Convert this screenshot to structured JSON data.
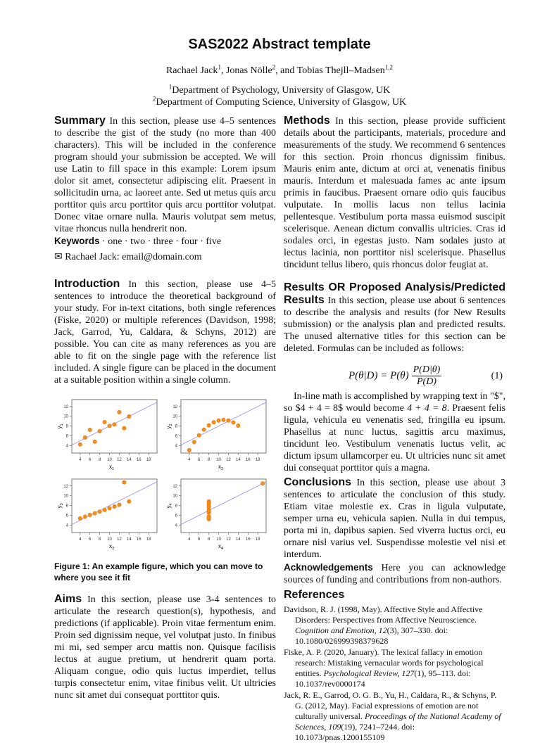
{
  "title": "SAS2022 Abstract template",
  "authors": [
    {
      "name": "Rachael Jack",
      "sup": "1",
      "sep": ", "
    },
    {
      "name": "Jonas Nölle",
      "sup": "2",
      "sep": ", and "
    },
    {
      "name": "Tobias Thejll–Madsen",
      "sup": "1,2",
      "sep": ""
    }
  ],
  "affiliations": [
    {
      "sup": "1",
      "text": "Department of Psychology, University of Glasgow, UK"
    },
    {
      "sup": "2",
      "text": "Department of Computing Science, University of Glasgow, UK"
    }
  ],
  "summary": {
    "heading": "Summary",
    "text": "In this section, please use 4–5 sentences to describe the gist of the study (no more than 400 characters). This will be included in the conference program should your submission be accepted. We will use Latin to fill space in this example: Lorem ipsum dolor sit amet, consectetur adipiscing elit. Praesent in sollicitudin urna, ac laoreet ante. Sed ut metus quis arcu porttitor quis arcu porttitor quis arcu porttitor volutpat. Donec vitae ornare nulla. Mauris volutpat sem metus, vitae rhoncus nulla hendrerit non."
  },
  "keywords": {
    "label": "Keywords",
    "text": "· one · two · three · four · five"
  },
  "contact": {
    "icon": "envelope-icon",
    "glyph": "✉",
    "text": "Rachael Jack: email@domain.com"
  },
  "introduction": {
    "heading": "Introduction",
    "text": "In this section, please use 4–5 sentences to introduce the theoretical background of your study. For in-text citations, both single references (Fiske, 2020) or multiple references (Davidson, 1998; Jack, Garrod, Yu, Caldara, & Schyns, 2012) are possible. You can cite as many references as you are able to fit on the single page with the reference list included. A single figure can be placed in the document at a suitable position within a single column."
  },
  "figure": {
    "caption": "Figure 1: An example figure, which you can move to where you see it fit"
  },
  "chart_data": [
    {
      "type": "scatter",
      "xlabel": "x",
      "xsub": "1",
      "ylabel": "y",
      "ysub": "1",
      "xlim": [
        2.3,
        19.7
      ],
      "ylim": [
        2.5,
        13.4
      ],
      "xticks": [
        4,
        6,
        8,
        10,
        12,
        14,
        16,
        18
      ],
      "yticks": [
        4,
        6,
        8,
        10,
        12
      ],
      "fit_line": {
        "intercept": 3,
        "slope": 0.5
      },
      "x": [
        10,
        8,
        13,
        9,
        11,
        14,
        6,
        4,
        12,
        7,
        5
      ],
      "y": [
        8.04,
        6.95,
        7.58,
        8.81,
        8.33,
        9.96,
        7.24,
        4.26,
        10.84,
        4.82,
        5.68
      ]
    },
    {
      "type": "scatter",
      "xlabel": "x",
      "xsub": "2",
      "ylabel": "y",
      "ysub": "2",
      "xlim": [
        2.3,
        19.7
      ],
      "ylim": [
        2.5,
        13.4
      ],
      "xticks": [
        4,
        6,
        8,
        10,
        12,
        14,
        16,
        18
      ],
      "yticks": [
        4,
        6,
        8,
        10,
        12
      ],
      "fit_line": {
        "intercept": 3,
        "slope": 0.5
      },
      "x": [
        10,
        8,
        13,
        9,
        11,
        14,
        6,
        4,
        12,
        7,
        5
      ],
      "y": [
        9.14,
        8.14,
        8.74,
        8.77,
        9.26,
        8.1,
        6.13,
        3.1,
        9.13,
        7.26,
        4.74
      ]
    },
    {
      "type": "scatter",
      "xlabel": "x",
      "xsub": "3",
      "ylabel": "y",
      "ysub": "3",
      "xlim": [
        2.3,
        19.7
      ],
      "ylim": [
        2.5,
        13.4
      ],
      "xticks": [
        4,
        6,
        8,
        10,
        12,
        14,
        16,
        18
      ],
      "yticks": [
        4,
        6,
        8,
        10,
        12
      ],
      "fit_line": {
        "intercept": 3,
        "slope": 0.5
      },
      "x": [
        10,
        8,
        13,
        9,
        11,
        14,
        6,
        4,
        12,
        7,
        5
      ],
      "y": [
        7.46,
        6.77,
        12.74,
        7.11,
        7.81,
        8.84,
        6.08,
        5.39,
        8.15,
        6.42,
        5.73
      ]
    },
    {
      "type": "scatter",
      "xlabel": "x",
      "xsub": "4",
      "ylabel": "y",
      "ysub": "4",
      "xlim": [
        2.3,
        19.7
      ],
      "ylim": [
        2.5,
        13.4
      ],
      "xticks": [
        4,
        6,
        8,
        10,
        12,
        14,
        16,
        18
      ],
      "yticks": [
        4,
        6,
        8,
        10,
        12
      ],
      "fit_line": {
        "intercept": 3,
        "slope": 0.5
      },
      "x": [
        8,
        8,
        8,
        8,
        8,
        8,
        8,
        19,
        8,
        8,
        8
      ],
      "y": [
        6.58,
        5.76,
        7.71,
        8.84,
        8.47,
        7.04,
        5.25,
        12.5,
        5.56,
        7.91,
        6.89
      ]
    }
  ],
  "colors": {
    "point": "#f28e1c",
    "point_edge": "#e8760a",
    "line": "#8f8ff0",
    "axis": "#555555"
  },
  "aims": {
    "heading": "Aims",
    "text": "In this section, please use 3-4 sentences to articulate the research question(s), hypothesis, and predictions (if applicable). Proin vitae fermentum enim. Proin sed dignissim neque, vel volutpat justo. In finibus mi mi, sed semper arcu mattis non. Quisque facilisis lectus at augue pretium, ut hendrerit quam porta. Aliquam congue, odio quis luctus imperdiet, tellus turpis consectetur enim, vitae finibus velit. Ut ultricies nunc sit amet dui consequat porttitor quis."
  },
  "methods": {
    "heading": "Methods",
    "text": "In this section, please provide sufficient details about the participants, materials, procedure and measurements of the study. We recommend 6 sentences for this section. Proin rhoncus dignissim finibus. Mauris enim ante, dictum at orci at, venenatis finibus mauris. Interdum et malesuada fames ac ante ipsum primis in faucibus. Praesent ornare odio quis faucibus vulputate. In mollis lacus non tellus lacinia pellentesque. Vestibulum porta massa euismod suscipit scelerisque. Aenean dictum convallis ultricies. Cras id sodales orci, in egestas justo. Nam sodales justo at lectus lacinia, non porttitor nisl scelerisque. Phasellus tincidunt tellus libero, quis rhoncus dolor feugiat at."
  },
  "results": {
    "heading": "Results OR Proposed Analysis/Predicted Results",
    "text": "In this section, please use about 6 sentences to describe the analysis and results (for New Results submission) or the analysis plan and predicted results. The unused alternative titles for this section can be deleted. Formulas can be included as follows:",
    "equation": {
      "lhs": "P(θ|D) = P(θ)",
      "num": "P(D|θ)",
      "den": "P(D)",
      "number": "(1)"
    },
    "text2_a": "In-line math is accomplished by wrapping text in \"$\", so $4 + 4 = 8$ would become ",
    "text2_math": "4 + 4 = 8",
    "text2_b": ". Praesent felis ligula, vehicula eu venenatis sed, fringilla eu ipsum. Phasellus at nunc luctus, sagittis arcu maximus, tincidunt leo. Vestibulum venenatis luctus velit, ac dictum ipsum ullamcorper eu. Ut ultricies nunc sit amet dui consequat porttitor quis a magna."
  },
  "conclusions": {
    "heading": "Conclusions",
    "text": "In this section, please use about 3 sentences to articulate the conclusion of this study. Etiam vitae molestie ex. Cras in ligula vulputate, semper urna eu, vehicula sapien. Nulla in dui tempus, porta mi in, dapibus sapien. Sed viverra luctus orci, eu ornare nisl varius vel. Suspendisse molestie vel nisi et interdum."
  },
  "acknowledgements": {
    "heading": "Acknowledgements",
    "text": "Here you can acknowledge sources of funding and contributions from non-authors."
  },
  "references": {
    "heading": "References",
    "items": [
      {
        "a": "Davidson, R. J. (1998, May). Affective Style and Affective Disorders: Perspectives from Affective Neuroscience. ",
        "journal": "Cognition and Emotion",
        "vol": ", 12",
        "b": "(3), 307–330. doi: 10.1080/026999398379628"
      },
      {
        "a": "Fiske, A. P. (2020, January). The lexical fallacy in emotion research: Mistaking vernacular words for psychological entities. ",
        "journal": "Psychological Review",
        "vol": ", 127",
        "b": "(1), 95–113. doi: 10.1037/rev0000174"
      },
      {
        "a": "Jack, R. E., Garrod, O. G. B., Yu, H., Caldara, R., & Schyns, P. G. (2012, May). Facial expressions of emotion are not culturally universal. ",
        "journal": "Proceedings of the National Academy of Sciences",
        "vol": ", 109",
        "b": "(19), 7241–7244. doi: 10.1073/pnas.1200155109"
      }
    ]
  }
}
